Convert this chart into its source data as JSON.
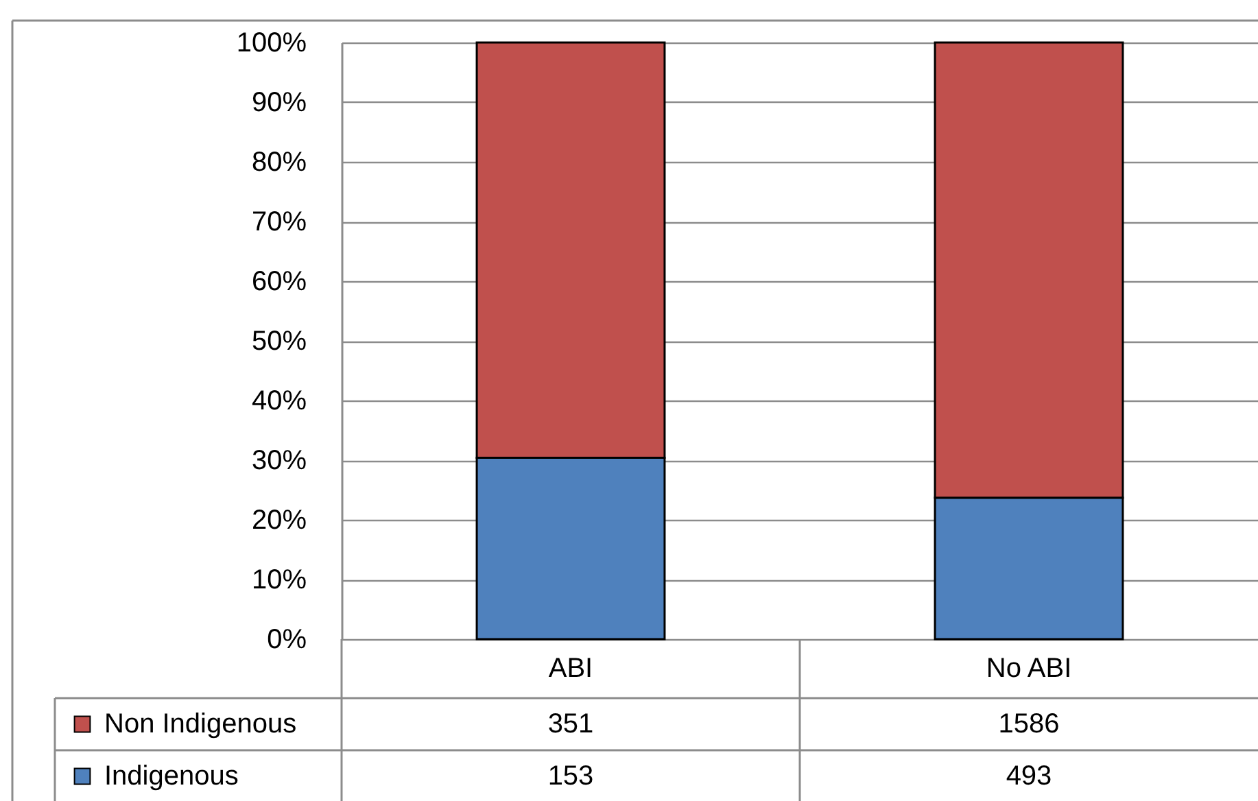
{
  "chart_data": {
    "type": "bar",
    "categories": [
      "ABI",
      "No ABI"
    ],
    "stacked": true,
    "series": [
      {
        "name": "Indigenous",
        "color": "#4f81bd",
        "values": [
          30.4,
          23.7
        ]
      },
      {
        "name": "Non Indigenous",
        "color": "#c0504d",
        "values": [
          69.6,
          76.3
        ]
      }
    ],
    "ylim": [
      0,
      100
    ],
    "yticks": [
      {
        "value": 0,
        "label": "0%"
      },
      {
        "value": 10,
        "label": "10%"
      },
      {
        "value": 20,
        "label": "20%"
      },
      {
        "value": 30,
        "label": "30%"
      },
      {
        "value": 40,
        "label": "40%"
      },
      {
        "value": 50,
        "label": "50%"
      },
      {
        "value": 60,
        "label": "60%"
      },
      {
        "value": 70,
        "label": "70%"
      },
      {
        "value": 80,
        "label": "80%"
      },
      {
        "value": 90,
        "label": "90%"
      },
      {
        "value": 100,
        "label": "100%"
      }
    ],
    "annotations": [
      "351",
      "1586",
      "153",
      "493"
    ],
    "grid": "y",
    "legend": "bottom"
  }
}
